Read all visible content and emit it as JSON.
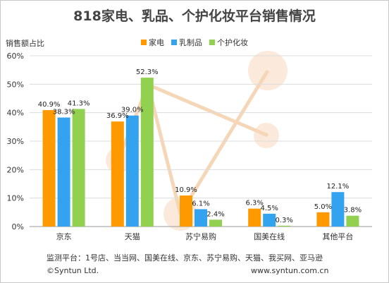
{
  "chart_data": {
    "type": "bar",
    "title": "818家电、乳品、个护化妆平台销售情况",
    "ylabel": "销售额占比",
    "xlabel": "",
    "ylim": [
      0,
      60
    ],
    "yticks": [
      "0%",
      "10%",
      "20%",
      "30%",
      "40%",
      "50%",
      "60%"
    ],
    "grid": true,
    "legend_position": "top",
    "categories": [
      "京东",
      "天猫",
      "苏宁易购",
      "国美在线",
      "其他平台"
    ],
    "series": [
      {
        "name": "家电",
        "color": "#ff9900",
        "values": [
          40.9,
          36.9,
          10.9,
          6.3,
          5.0
        ],
        "labels": [
          "40.9%",
          "36.9%",
          "10.9%",
          "6.3%",
          "5.0%"
        ]
      },
      {
        "name": "乳制品",
        "color": "#33a3f0",
        "values": [
          38.3,
          39.0,
          6.1,
          4.5,
          12.1
        ],
        "labels": [
          "38.3%",
          "39.0%",
          "6.1%",
          "4.5%",
          "12.1%"
        ]
      },
      {
        "name": "个护化妆",
        "color": "#92d050",
        "values": [
          41.3,
          52.3,
          2.4,
          0.3,
          3.8
        ],
        "labels": [
          "41.3%",
          "52.3%",
          "2.4%",
          "0.3%",
          "3.8%"
        ]
      }
    ]
  },
  "footer": {
    "monitor": "监测平台：1号店、当当网、国美在线、京东、苏宁易购、天猫、我买网、亚马逊",
    "copyright": "©Syntun Ltd.",
    "website": "www.syntun.com.cn"
  }
}
